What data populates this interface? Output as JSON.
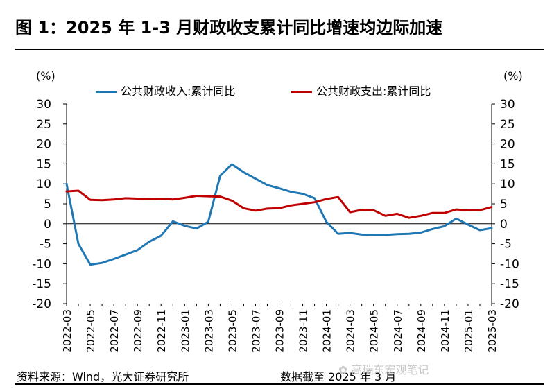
{
  "title": "图 1：2025 年 1-3 月财政收支累计同比增速均边际加速",
  "chart_data": {
    "type": "line",
    "y_unit_left": "(%)",
    "y_unit_right": "(%)",
    "ylim": [
      -20,
      30
    ],
    "yticks": [
      30,
      25,
      20,
      15,
      10,
      5,
      0,
      -5,
      -10,
      -15,
      -20
    ],
    "x_ticks": [
      "2022-03",
      "2022-05",
      "2022-07",
      "2022-09",
      "2022-11",
      "2023-01",
      "2023-03",
      "2023-05",
      "2023-07",
      "2023-09",
      "2023-11",
      "2024-01",
      "2024-03",
      "2024-05",
      "2024-07",
      "2024-09",
      "2024-11",
      "2025-01",
      "2025-03"
    ],
    "x": [
      "2022-03",
      "2022-04",
      "2022-05",
      "2022-06",
      "2022-07",
      "2022-08",
      "2022-09",
      "2022-10",
      "2022-11",
      "2022-12",
      "2023-01",
      "2023-02",
      "2023-03",
      "2023-04",
      "2023-05",
      "2023-06",
      "2023-07",
      "2023-08",
      "2023-09",
      "2023-10",
      "2023-11",
      "2023-12",
      "2024-01",
      "2024-02",
      "2024-03",
      "2024-04",
      "2024-05",
      "2024-06",
      "2024-07",
      "2024-08",
      "2024-09",
      "2024-10",
      "2024-11",
      "2024-12",
      "2025-01",
      "2025-02",
      "2025-03"
    ],
    "series": [
      {
        "name": "公共财政收入:累计同比",
        "color": "#1f77b4",
        "values": [
          10,
          -5,
          -10.2,
          -9.8,
          -8.8,
          -7.7,
          -6.6,
          -4.5,
          -3,
          0.6,
          -0.5,
          -1.2,
          0.5,
          12,
          14.9,
          12.9,
          11.3,
          9.7,
          8.9,
          8,
          7.5,
          6.4,
          0.5,
          -2.5,
          -2.3,
          -2.7,
          -2.8,
          -2.8,
          -2.6,
          -2.5,
          -2.2,
          -1.3,
          -0.6,
          1.3,
          -0.2,
          -1.6,
          -1.1
        ]
      },
      {
        "name": "公共财政支出:累计同比",
        "color": "#c00000",
        "values": [
          8.1,
          8.3,
          6,
          5.9,
          6.1,
          6.4,
          6.3,
          6.2,
          6.3,
          6.1,
          6.5,
          7,
          6.9,
          6.8,
          5.8,
          3.9,
          3.3,
          3.8,
          3.9,
          4.6,
          5,
          5.4,
          6.2,
          6.7,
          2.9,
          3.5,
          3.4,
          2,
          2.5,
          1.5,
          2,
          2.7,
          2.7,
          3.6,
          3.4,
          3.4,
          4.2
        ]
      }
    ]
  },
  "footer_source": "资料来源：Wind，光大证券研究所",
  "footer_date": "数据截至 2025 年 3 月",
  "watermark": "高瑞东宏观笔记"
}
